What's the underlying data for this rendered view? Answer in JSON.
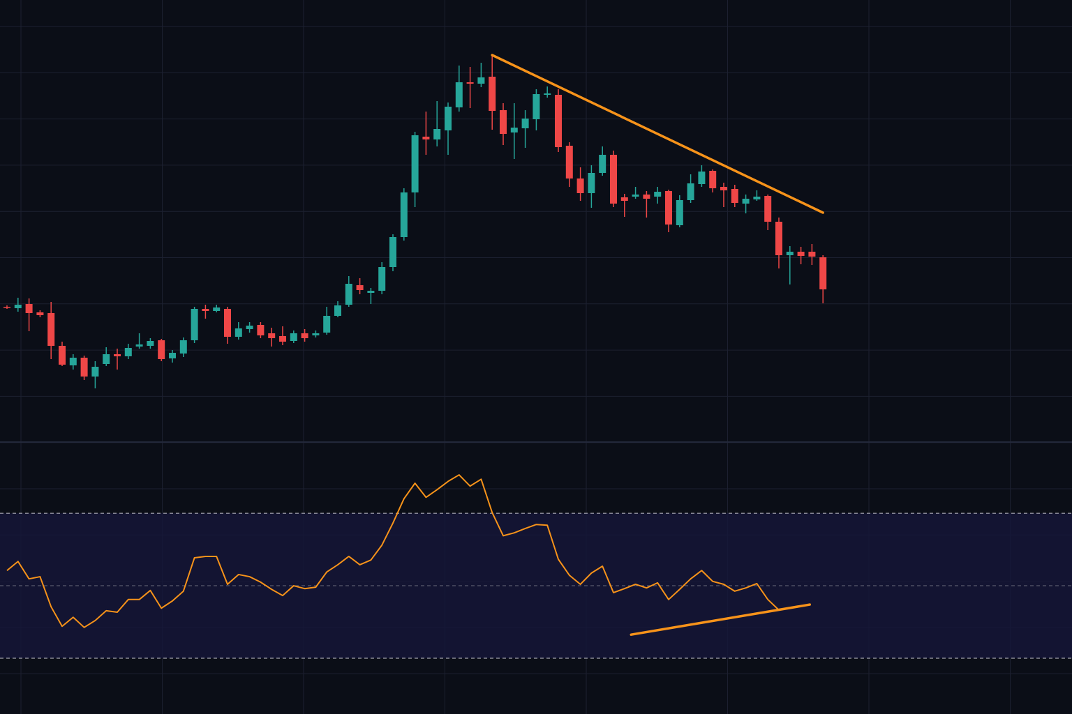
{
  "chart_data": [
    {
      "type": "candlestick",
      "colors": {
        "up": "#26a69a",
        "down": "#ef4747"
      },
      "ylim": [
        0,
        640
      ],
      "open": [
        200,
        198,
        204,
        192,
        191,
        144,
        116,
        127,
        100,
        118,
        132,
        129,
        143,
        144,
        152,
        126,
        133,
        152,
        197,
        194,
        197,
        157,
        168,
        174,
        162,
        158,
        151,
        162,
        159,
        163,
        187,
        203,
        231,
        220,
        223,
        257,
        300,
        364,
        444,
        440,
        453,
        486,
        522,
        520,
        530,
        482,
        450,
        456,
        469,
        504,
        504,
        431,
        384,
        363,
        392,
        418,
        357,
        358,
        361,
        358,
        366,
        317,
        353,
        376,
        395,
        372,
        369,
        348,
        354,
        359,
        322,
        274,
        279,
        279,
        271
      ],
      "high": [
        202,
        213,
        212,
        195,
        207,
        150,
        132,
        130,
        122,
        142,
        140,
        147,
        162,
        155,
        154,
        138,
        156,
        200,
        203,
        203,
        200,
        178,
        178,
        178,
        170,
        172,
        166,
        168,
        166,
        200,
        208,
        244,
        241,
        227,
        264,
        304,
        370,
        451,
        480,
        495,
        493,
        546,
        544,
        550,
        561,
        492,
        492,
        482,
        512,
        516,
        512,
        436,
        400,
        403,
        430,
        424,
        362,
        372,
        366,
        372,
        368,
        360,
        390,
        403,
        397,
        378,
        375,
        361,
        367,
        361,
        328,
        287,
        286,
        290,
        274
      ],
      "low": [
        197,
        193,
        165,
        185,
        125,
        115,
        110,
        95,
        83,
        115,
        110,
        125,
        140,
        140,
        122,
        120,
        128,
        148,
        183,
        192,
        147,
        153,
        163,
        155,
        143,
        145,
        148,
        150,
        156,
        160,
        185,
        200,
        218,
        204,
        218,
        251,
        295,
        343,
        418,
        430,
        418,
        480,
        485,
        515,
        454,
        432,
        412,
        428,
        453,
        500,
        422,
        372,
        352,
        342,
        388,
        343,
        329,
        355,
        328,
        348,
        307,
        314,
        349,
        372,
        364,
        343,
        343,
        334,
        352,
        310,
        255,
        232,
        261,
        260,
        205
      ],
      "close": [
        199,
        203,
        191,
        188,
        144,
        117,
        127,
        100,
        114,
        132,
        129,
        141,
        146,
        151,
        125,
        134,
        152,
        197,
        194,
        199,
        157,
        169,
        173,
        159,
        155,
        150,
        162,
        155,
        162,
        187,
        202,
        233,
        224,
        223,
        257,
        300,
        364,
        446,
        440,
        455,
        487,
        522,
        520,
        529,
        481,
        448,
        457,
        470,
        505,
        506,
        429,
        384,
        363,
        392,
        418,
        348,
        352,
        361,
        355,
        365,
        318,
        353,
        377,
        394,
        370,
        367,
        349,
        355,
        358,
        322,
        274,
        279,
        273,
        272,
        225
      ],
      "trendlines": [
        {
          "x": [
            44,
            74
          ],
          "y": [
            561,
            335
          ],
          "color": "#f7931a"
        }
      ]
    },
    {
      "type": "line",
      "ylim": [
        14.6,
        88.5
      ],
      "levels": [
        30,
        50,
        70
      ],
      "series": [
        {
          "color": "#f7931a",
          "values": [
            54.2,
            56.7,
            51.9,
            52.5,
            44.2,
            38.8,
            41.3,
            38.5,
            40.4,
            43.1,
            42.7,
            46.2,
            46.2,
            48.7,
            43.8,
            45.8,
            48.5,
            57.7,
            58.1,
            58.1,
            50.4,
            53.1,
            52.5,
            51.0,
            49.0,
            47.3,
            50.0,
            49.2,
            49.6,
            53.8,
            55.8,
            58.1,
            55.8,
            57.1,
            61.2,
            67.3,
            74.0,
            78.3,
            74.4,
            76.5,
            78.8,
            80.6,
            77.5,
            79.4,
            70.2,
            63.8,
            64.6,
            65.8,
            66.9,
            66.7,
            57.3,
            52.9,
            50.4,
            53.5,
            55.4,
            48.1,
            49.2,
            50.4,
            49.4,
            50.8,
            46.2,
            49.0,
            51.9,
            54.2,
            51.2,
            50.4,
            48.5,
            49.4,
            50.6,
            46.2,
            43.3,
            null,
            null,
            null,
            null
          ]
        }
      ],
      "trendlines": [
        {
          "x": [
            56.6,
            72.8
          ],
          "y": [
            36.5,
            44.8
          ],
          "color": "#f7931a"
        }
      ]
    }
  ]
}
